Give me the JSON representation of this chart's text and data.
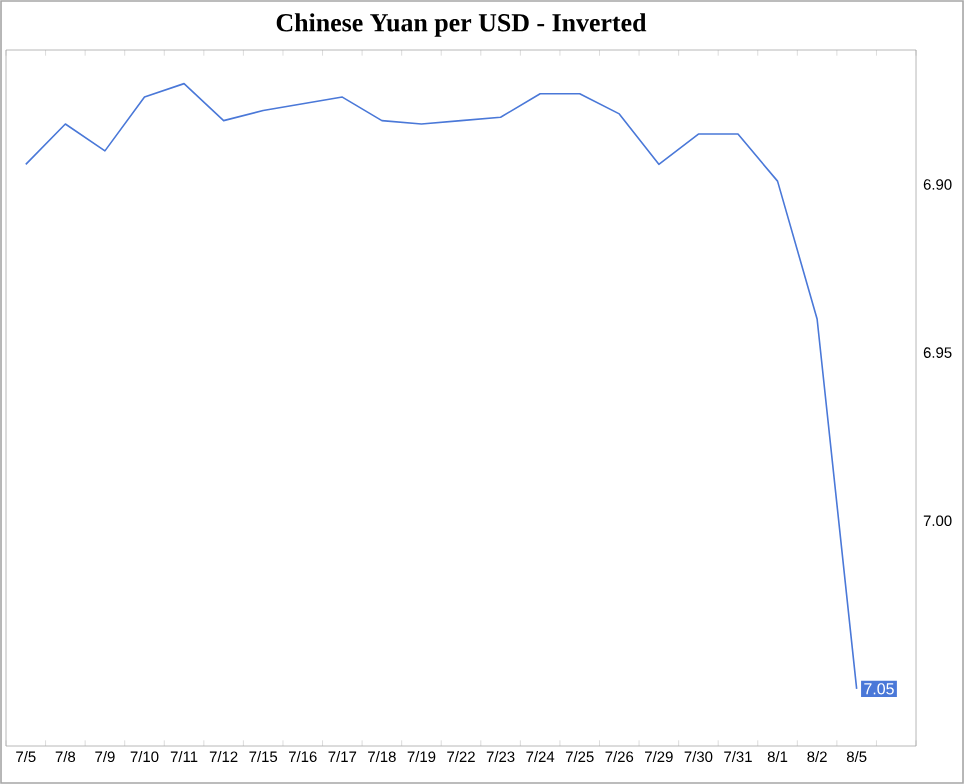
{
  "chart_data": {
    "type": "line",
    "title": "Chinese Yuan per USD - Inverted",
    "categories": [
      "7/5",
      "7/8",
      "7/9",
      "7/10",
      "7/11",
      "7/12",
      "7/15",
      "7/16",
      "7/17",
      "7/18",
      "7/19",
      "7/22",
      "7/23",
      "7/24",
      "7/25",
      "7/26",
      "7/29",
      "7/30",
      "7/31",
      "8/1",
      "8/2",
      "8/5",
      null
    ],
    "series": [
      {
        "color": "#4a78d8",
        "values": [
          6.894,
          6.882,
          6.89,
          6.874,
          6.87,
          6.881,
          6.878,
          6.876,
          6.874,
          6.881,
          6.882,
          6.881,
          6.88,
          6.873,
          6.873,
          6.879,
          6.894,
          6.885,
          6.885,
          6.899,
          6.94,
          7.05,
          null
        ],
        "value_labels": [
          null,
          null,
          null,
          null,
          null,
          null,
          null,
          null,
          null,
          null,
          null,
          null,
          null,
          null,
          null,
          null,
          null,
          null,
          null,
          null,
          null,
          "7.05",
          null
        ]
      }
    ],
    "ylim": [
      7.067,
      6.86
    ],
    "yticks": [
      {
        "value": 6.9,
        "label": "6.90"
      },
      {
        "value": 6.95,
        "label": "6.95"
      },
      {
        "value": 7.0,
        "label": "7.00"
      }
    ],
    "grid": false,
    "marker": "none",
    "line_style": "solid"
  }
}
